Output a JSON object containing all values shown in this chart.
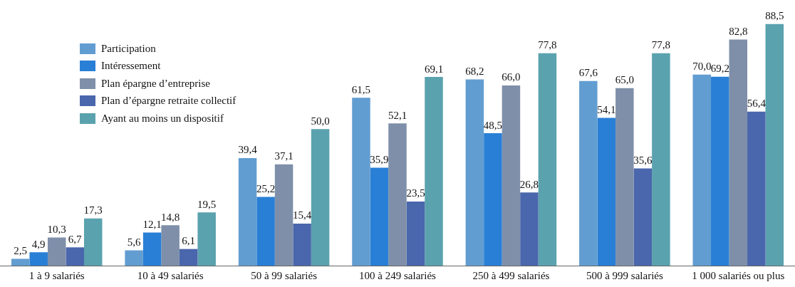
{
  "chart_data": {
    "type": "bar",
    "categories": [
      "1 à 9 salariés",
      "10 à 49 salariés",
      "50 à 99 salariés",
      "100 à 249 salariés",
      "250 à 499 salariés",
      "500 à 999 salariés",
      "1 000 salariés ou plus"
    ],
    "series": [
      {
        "name": "Participation",
        "color": "#629dd1",
        "values": [
          2.5,
          5.6,
          39.4,
          61.5,
          68.2,
          67.6,
          70.0
        ],
        "value_labels": [
          "2,5",
          "5,6",
          "39,4",
          "61,5",
          "68,2",
          "67,6",
          "70,0"
        ]
      },
      {
        "name": "Intéressement",
        "color": "#297fd5",
        "values": [
          4.9,
          12.1,
          25.2,
          35.9,
          48.5,
          54.1,
          69.2
        ],
        "value_labels": [
          "4,9",
          "12,1",
          "25,2",
          "35,9",
          "48,5",
          "54,1",
          "69,2"
        ]
      },
      {
        "name": "Plan épargne d’entreprise",
        "color": "#7f8fa9",
        "values": [
          10.3,
          14.8,
          37.1,
          52.1,
          66.0,
          65.0,
          82.8
        ],
        "value_labels": [
          "10,3",
          "14,8",
          "37,1",
          "52,1",
          "66,0",
          "65,0",
          "82,8"
        ]
      },
      {
        "name": "Plan d’épargne retraite collectif",
        "color": "#4a66ac",
        "values": [
          6.7,
          6.1,
          15.4,
          23.5,
          26.8,
          35.6,
          56.4
        ],
        "value_labels": [
          "6,7",
          "6,1",
          "15,4",
          "23,5",
          "26,8",
          "35,6",
          "56,4"
        ]
      },
      {
        "name": "Ayant au moins un dispositif",
        "color": "#5aa2ae",
        "values": [
          17.3,
          19.5,
          50.0,
          69.1,
          77.8,
          77.8,
          88.5
        ],
        "value_labels": [
          "17,3",
          "19,5",
          "50,0",
          "69,1",
          "77,8",
          "77,8",
          "88,5"
        ]
      }
    ],
    "legend": "top left",
    "grid": false
  }
}
